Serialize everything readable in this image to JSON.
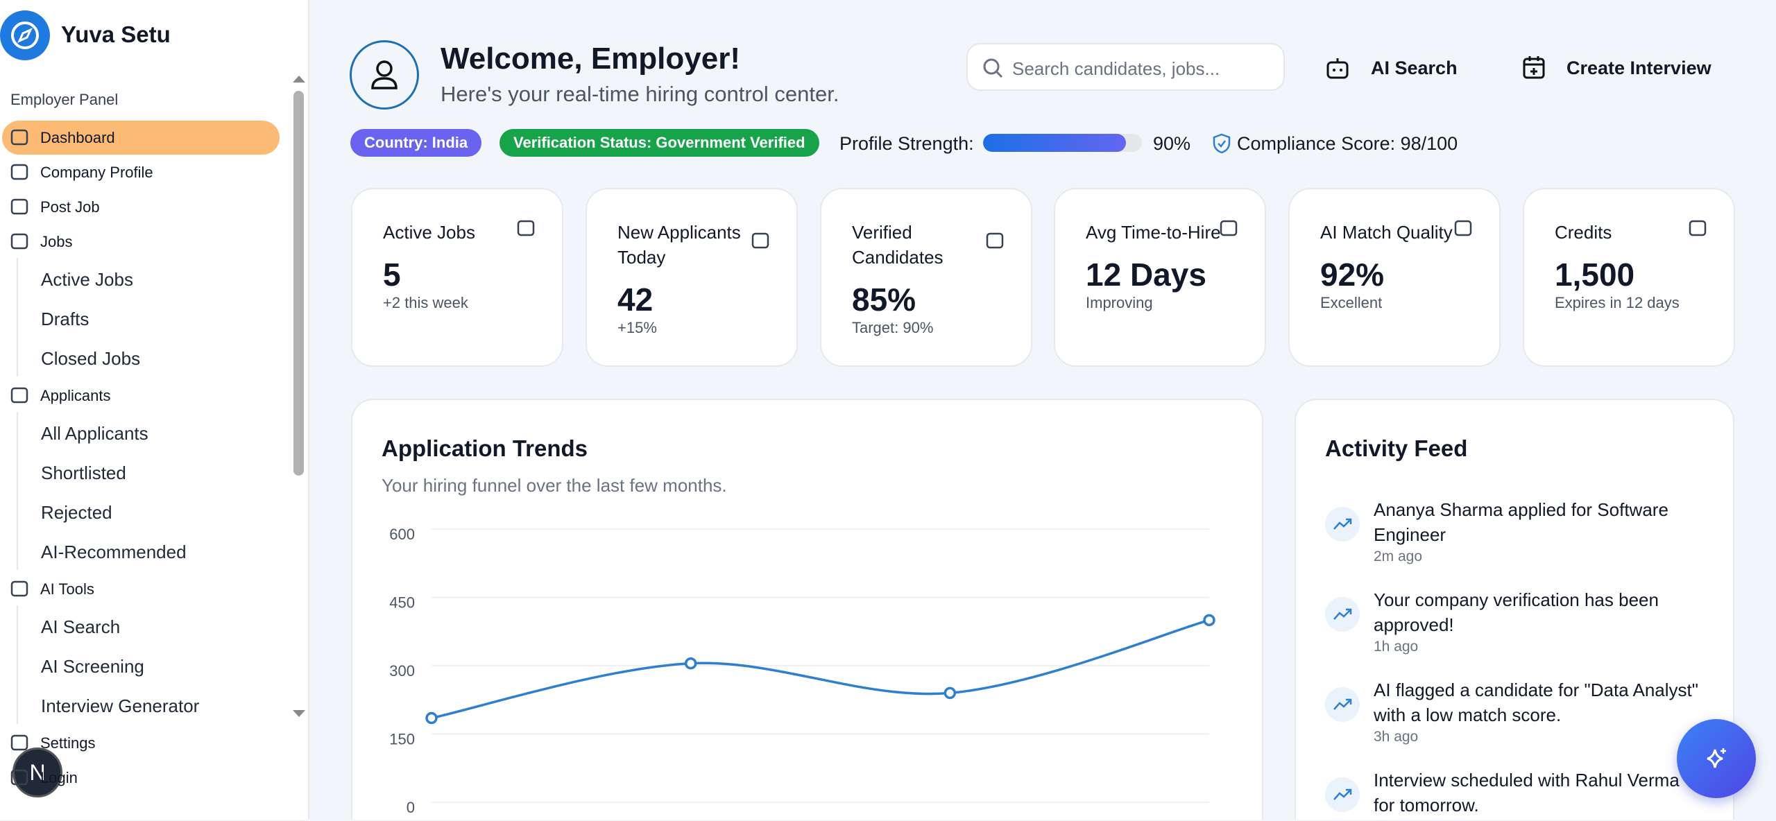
{
  "sidebar": {
    "brand": "Yuva Setu",
    "section": "Employer Panel",
    "nav": [
      {
        "label": "Dashboard"
      },
      {
        "label": "Company Profile"
      },
      {
        "label": "Post Job"
      },
      {
        "label": "Jobs",
        "children": [
          "Active Jobs",
          "Drafts",
          "Closed Jobs"
        ]
      },
      {
        "label": "Applicants",
        "children": [
          "All Applicants",
          "Shortlisted",
          "Rejected",
          "AI-Recommended"
        ]
      },
      {
        "label": "AI Tools",
        "children": [
          "AI Search",
          "AI Screening",
          "Interview Generator"
        ]
      },
      {
        "label": "Settings"
      },
      {
        "label": "Login"
      }
    ],
    "avatar": "N"
  },
  "header": {
    "title": "Welcome, Employer!",
    "subtitle": "Here's your real-time hiring control center.",
    "search_placeholder": "Search candidates, jobs...",
    "actions": [
      "AI Search",
      "Create Interview"
    ]
  },
  "status": {
    "country": "Country: India",
    "verification": "Verification Status: Government Verified",
    "profile_strength_label": "Profile Strength:",
    "profile_strength": {
      "value": 90,
      "label": "90%"
    },
    "compliance": "Compliance Score: 98/100"
  },
  "stats": [
    {
      "label": "Active Jobs",
      "value": "5",
      "note": "+2 this week"
    },
    {
      "label": "New Applicants Today",
      "value": "42",
      "note": "+15%"
    },
    {
      "label": "Verified Candidates",
      "value": "85%",
      "note": "Target: 90%"
    },
    {
      "label": "Avg Time-to-Hire",
      "value": "12 Days",
      "note": "Improving"
    },
    {
      "label": "AI Match Quality",
      "value": "92%",
      "note": "Excellent"
    },
    {
      "label": "Credits",
      "value": "1,500",
      "note": "Expires in 12 days"
    }
  ],
  "chart_data": {
    "type": "line",
    "title": "Application Trends",
    "subtitle": "Your hiring funnel over the last few months.",
    "categories": [
      null,
      null,
      null,
      null
    ],
    "series": [
      {
        "name": null,
        "color": "#2f7fd0",
        "values": [
          185,
          305,
          240,
          400
        ]
      }
    ],
    "ylim": [
      0,
      600
    ],
    "yticks": [
      0,
      150,
      300,
      450,
      600
    ],
    "grid": true
  },
  "activity": {
    "title": "Activity Feed",
    "items": [
      {
        "text": "Ananya Sharma applied for Software Engineer",
        "time": "2m ago"
      },
      {
        "text": "Your company verification has been approved!",
        "time": "1h ago"
      },
      {
        "text": "AI flagged a candidate for \"Data Analyst\" with a low match score.",
        "time": "3h ago"
      },
      {
        "text": "Interview scheduled with Rahul Verma for tomorrow.",
        "time": null
      }
    ]
  }
}
